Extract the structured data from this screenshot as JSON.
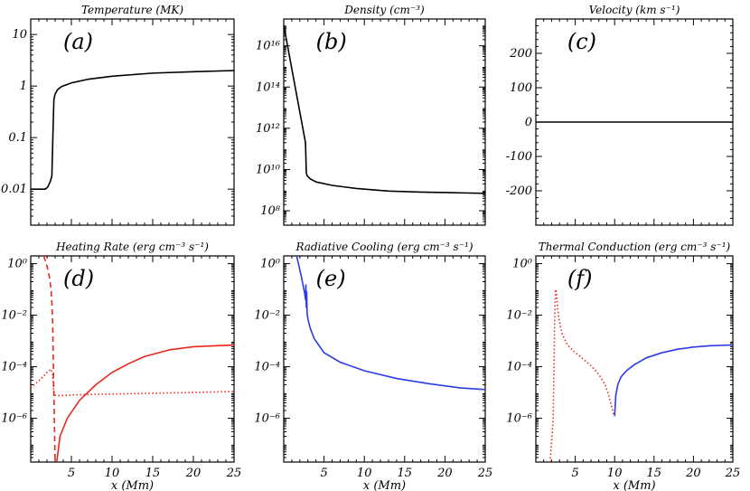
{
  "colors": {
    "axes": "#000000",
    "black": "#000000",
    "red": "#e8281e",
    "blue": "#2a3ce6"
  },
  "chart_data": [
    {
      "panel": "a",
      "type": "line",
      "title": "Temperature (MK)",
      "annotation": "(a)",
      "xlabel": "",
      "xlim": [
        0,
        25
      ],
      "yscale": "log",
      "ylim": [
        0.002,
        20
      ],
      "yticks": [
        {
          "v": 0.01,
          "label": "0.01"
        },
        {
          "v": 0.1,
          "label": "0.1"
        },
        {
          "v": 1,
          "label": "1"
        },
        {
          "v": 10,
          "label": "10"
        }
      ],
      "xticks": [],
      "series": [
        {
          "name": "temperature",
          "color": "#000000",
          "dash": "",
          "x": [
            0,
            1.8,
            2.1,
            2.4,
            2.6,
            2.75,
            2.85,
            3.0,
            3.3,
            3.8,
            5,
            7,
            10,
            15,
            20,
            25
          ],
          "y": [
            0.01,
            0.01,
            0.011,
            0.014,
            0.018,
            0.15,
            0.55,
            0.7,
            0.85,
            0.98,
            1.15,
            1.35,
            1.55,
            1.78,
            1.9,
            2.0
          ]
        }
      ]
    },
    {
      "panel": "b",
      "type": "line",
      "title": "Density (cm⁻³)",
      "annotation": "(b)",
      "xlabel": "",
      "xlim": [
        0,
        25
      ],
      "yscale": "log",
      "ylim": [
        20000000.0,
        2e+17
      ],
      "yticks": [
        {
          "v": 100000000.0,
          "label": "10⁸"
        },
        {
          "v": 10000000000.0,
          "label": "10¹⁰"
        },
        {
          "v": 1000000000000.0,
          "label": "10¹²"
        },
        {
          "v": 100000000000000.0,
          "label": "10¹⁴"
        },
        {
          "v": 1e+16,
          "label": "10¹⁶"
        }
      ],
      "xticks": [],
      "series": [
        {
          "name": "density",
          "color": "#000000",
          "dash": "",
          "x": [
            0,
            2.7,
            2.8,
            2.9,
            3.3,
            4,
            6,
            9,
            13,
            17,
            21,
            25
          ],
          "y": [
            1e+17,
            200000000000.0,
            7000000000.0,
            5000000000.0,
            3500000000.0,
            2500000000.0,
            1700000000.0,
            1200000000.0,
            900000000.0,
            800000000.0,
            750000000.0,
            700000000.0
          ]
        }
      ]
    },
    {
      "panel": "c",
      "type": "line",
      "title": "Velocity (km s⁻¹)",
      "annotation": "(c)",
      "xlabel": "",
      "xlim": [
        0,
        25
      ],
      "yscale": "linear",
      "ylim": [
        -300,
        300
      ],
      "yticks": [
        {
          "v": -200,
          "label": "-200"
        },
        {
          "v": -100,
          "label": "-100"
        },
        {
          "v": 0,
          "label": "0"
        },
        {
          "v": 100,
          "label": "100"
        },
        {
          "v": 200,
          "label": "200"
        }
      ],
      "xticks": [],
      "series": [
        {
          "name": "velocity",
          "color": "#000000",
          "dash": "",
          "x": [
            0,
            25
          ],
          "y": [
            0,
            0
          ]
        }
      ]
    },
    {
      "panel": "d",
      "type": "line",
      "title": "Heating Rate (erg cm⁻³ s⁻¹)",
      "annotation": "(d)",
      "xlabel": "x (Mm)",
      "xlim": [
        0,
        25
      ],
      "yscale": "log",
      "ylim": [
        2e-08,
        2
      ],
      "yticks": [
        {
          "v": 1e-06,
          "label": "10⁻⁶"
        },
        {
          "v": 0.0001,
          "label": "10⁻⁴"
        },
        {
          "v": 0.01,
          "label": "10⁻²"
        },
        {
          "v": 1,
          "label": "10⁰"
        }
      ],
      "xticks": [
        {
          "v": 5,
          "label": "5"
        },
        {
          "v": 10,
          "label": "10"
        },
        {
          "v": 15,
          "label": "15"
        },
        {
          "v": 20,
          "label": "20"
        },
        {
          "v": 25,
          "label": "25"
        }
      ],
      "series": [
        {
          "name": "dashed",
          "color": "#e8281e",
          "dash": "6,4",
          "x": [
            1.6,
            2.0,
            2.3,
            2.5,
            2.6,
            2.7,
            2.8,
            3.0
          ],
          "y": [
            2,
            0.8,
            0.3,
            0.1,
            0.03,
            0.005,
            5e-05,
            2e-08
          ]
        },
        {
          "name": "dotted",
          "color": "#e8281e",
          "dash": "1.5,2.5",
          "x": [
            0,
            0.8,
            1.5,
            2.1,
            2.5,
            2.7,
            2.8,
            2.9,
            3.2,
            5,
            8,
            12,
            16,
            20,
            25
          ],
          "y": [
            1.5e-05,
            2.5e-05,
            4e-05,
            6.5e-05,
            8e-05,
            5e-05,
            1.5e-05,
            8e-06,
            7.5e-06,
            8e-06,
            8.5e-06,
            9e-06,
            9.5e-06,
            1e-05,
            1.1e-05
          ]
        },
        {
          "name": "solid",
          "color": "#e8281e",
          "dash": "",
          "x": [
            3.2,
            3.6,
            4.5,
            6,
            8,
            10,
            12,
            14,
            17,
            20,
            25
          ],
          "y": [
            2e-08,
            2e-07,
            1e-06,
            5e-06,
            2e-05,
            6e-05,
            0.00013,
            0.00025,
            0.00045,
            0.0006,
            0.0007
          ]
        }
      ]
    },
    {
      "panel": "e",
      "type": "line",
      "title": "Radiative Cooling (erg cm⁻³ s⁻¹)",
      "annotation": "(e)",
      "xlabel": "x (Mm)",
      "xlim": [
        0,
        25
      ],
      "yscale": "log",
      "ylim": [
        2e-08,
        2
      ],
      "yticks": [
        {
          "v": 1e-06,
          "label": "10⁻⁶"
        },
        {
          "v": 0.0001,
          "label": "10⁻⁴"
        },
        {
          "v": 0.01,
          "label": "10⁻²"
        },
        {
          "v": 1,
          "label": "10⁰"
        }
      ],
      "xticks": [
        {
          "v": 5,
          "label": "5"
        },
        {
          "v": 10,
          "label": "10"
        },
        {
          "v": 15,
          "label": "15"
        },
        {
          "v": 20,
          "label": "20"
        },
        {
          "v": 25,
          "label": "25"
        }
      ],
      "series": [
        {
          "name": "radiative",
          "color": "#2a3ce6",
          "dash": "",
          "x": [
            1.6,
            2.2,
            2.6,
            2.7,
            2.75,
            2.8,
            2.85,
            2.9,
            3.0,
            3.3,
            3.8,
            5,
            7,
            10,
            14,
            18,
            22,
            25
          ],
          "y": [
            2,
            0.3,
            0.07,
            0.04,
            0.15,
            0.02,
            0.08,
            0.012,
            0.007,
            0.003,
            0.0012,
            0.00035,
            0.00015,
            7e-05,
            3.5e-05,
            2.2e-05,
            1.5e-05,
            1.3e-05
          ]
        }
      ]
    },
    {
      "panel": "f",
      "type": "line",
      "title": "Thermal Conduction (erg cm⁻³ s⁻¹)",
      "annotation": "(f)",
      "xlabel": "x (Mm)",
      "xlim": [
        0,
        25
      ],
      "yscale": "log",
      "ylim": [
        2e-08,
        2
      ],
      "yticks": [
        {
          "v": 1e-06,
          "label": "10⁻⁶"
        },
        {
          "v": 0.0001,
          "label": "10⁻⁴"
        },
        {
          "v": 0.01,
          "label": "10⁻²"
        },
        {
          "v": 1,
          "label": "10⁰"
        }
      ],
      "xticks": [
        {
          "v": 5,
          "label": "5"
        },
        {
          "v": 10,
          "label": "10"
        },
        {
          "v": 15,
          "label": "15"
        },
        {
          "v": 20,
          "label": "20"
        },
        {
          "v": 25,
          "label": "25"
        }
      ],
      "series": [
        {
          "name": "dotted",
          "color": "#e8281e",
          "dash": "1.5,2.5",
          "x": [
            1.8,
            1.9,
            2.0,
            2.1,
            2.2,
            2.3,
            2.4,
            2.5,
            2.6,
            2.7,
            2.9,
            3.3,
            4,
            5,
            6,
            7,
            8,
            8.8,
            9.3,
            9.6,
            9.8,
            9.9
          ],
          "y": [
            2e-08,
            5e-08,
            1.2e-07,
            3e-07,
            1e-06,
            0.0001,
            0.01,
            0.1,
            0.08,
            0.03,
            0.008,
            0.002,
            0.0007,
            0.00035,
            0.0002,
            0.00011,
            5e-05,
            2e-05,
            7e-06,
            3e-06,
            1.8e-06,
            1.2e-06
          ]
        },
        {
          "name": "solid",
          "color": "#2a3ce6",
          "dash": "",
          "x": [
            10.0,
            10.15,
            10.4,
            10.8,
            11.5,
            12.5,
            14,
            16,
            18,
            20,
            22,
            25
          ],
          "y": [
            1.2e-06,
            8e-06,
            2e-05,
            4e-05,
            7e-05,
            0.00012,
            0.00022,
            0.00035,
            0.00048,
            0.00058,
            0.00065,
            0.0007
          ]
        }
      ]
    }
  ]
}
